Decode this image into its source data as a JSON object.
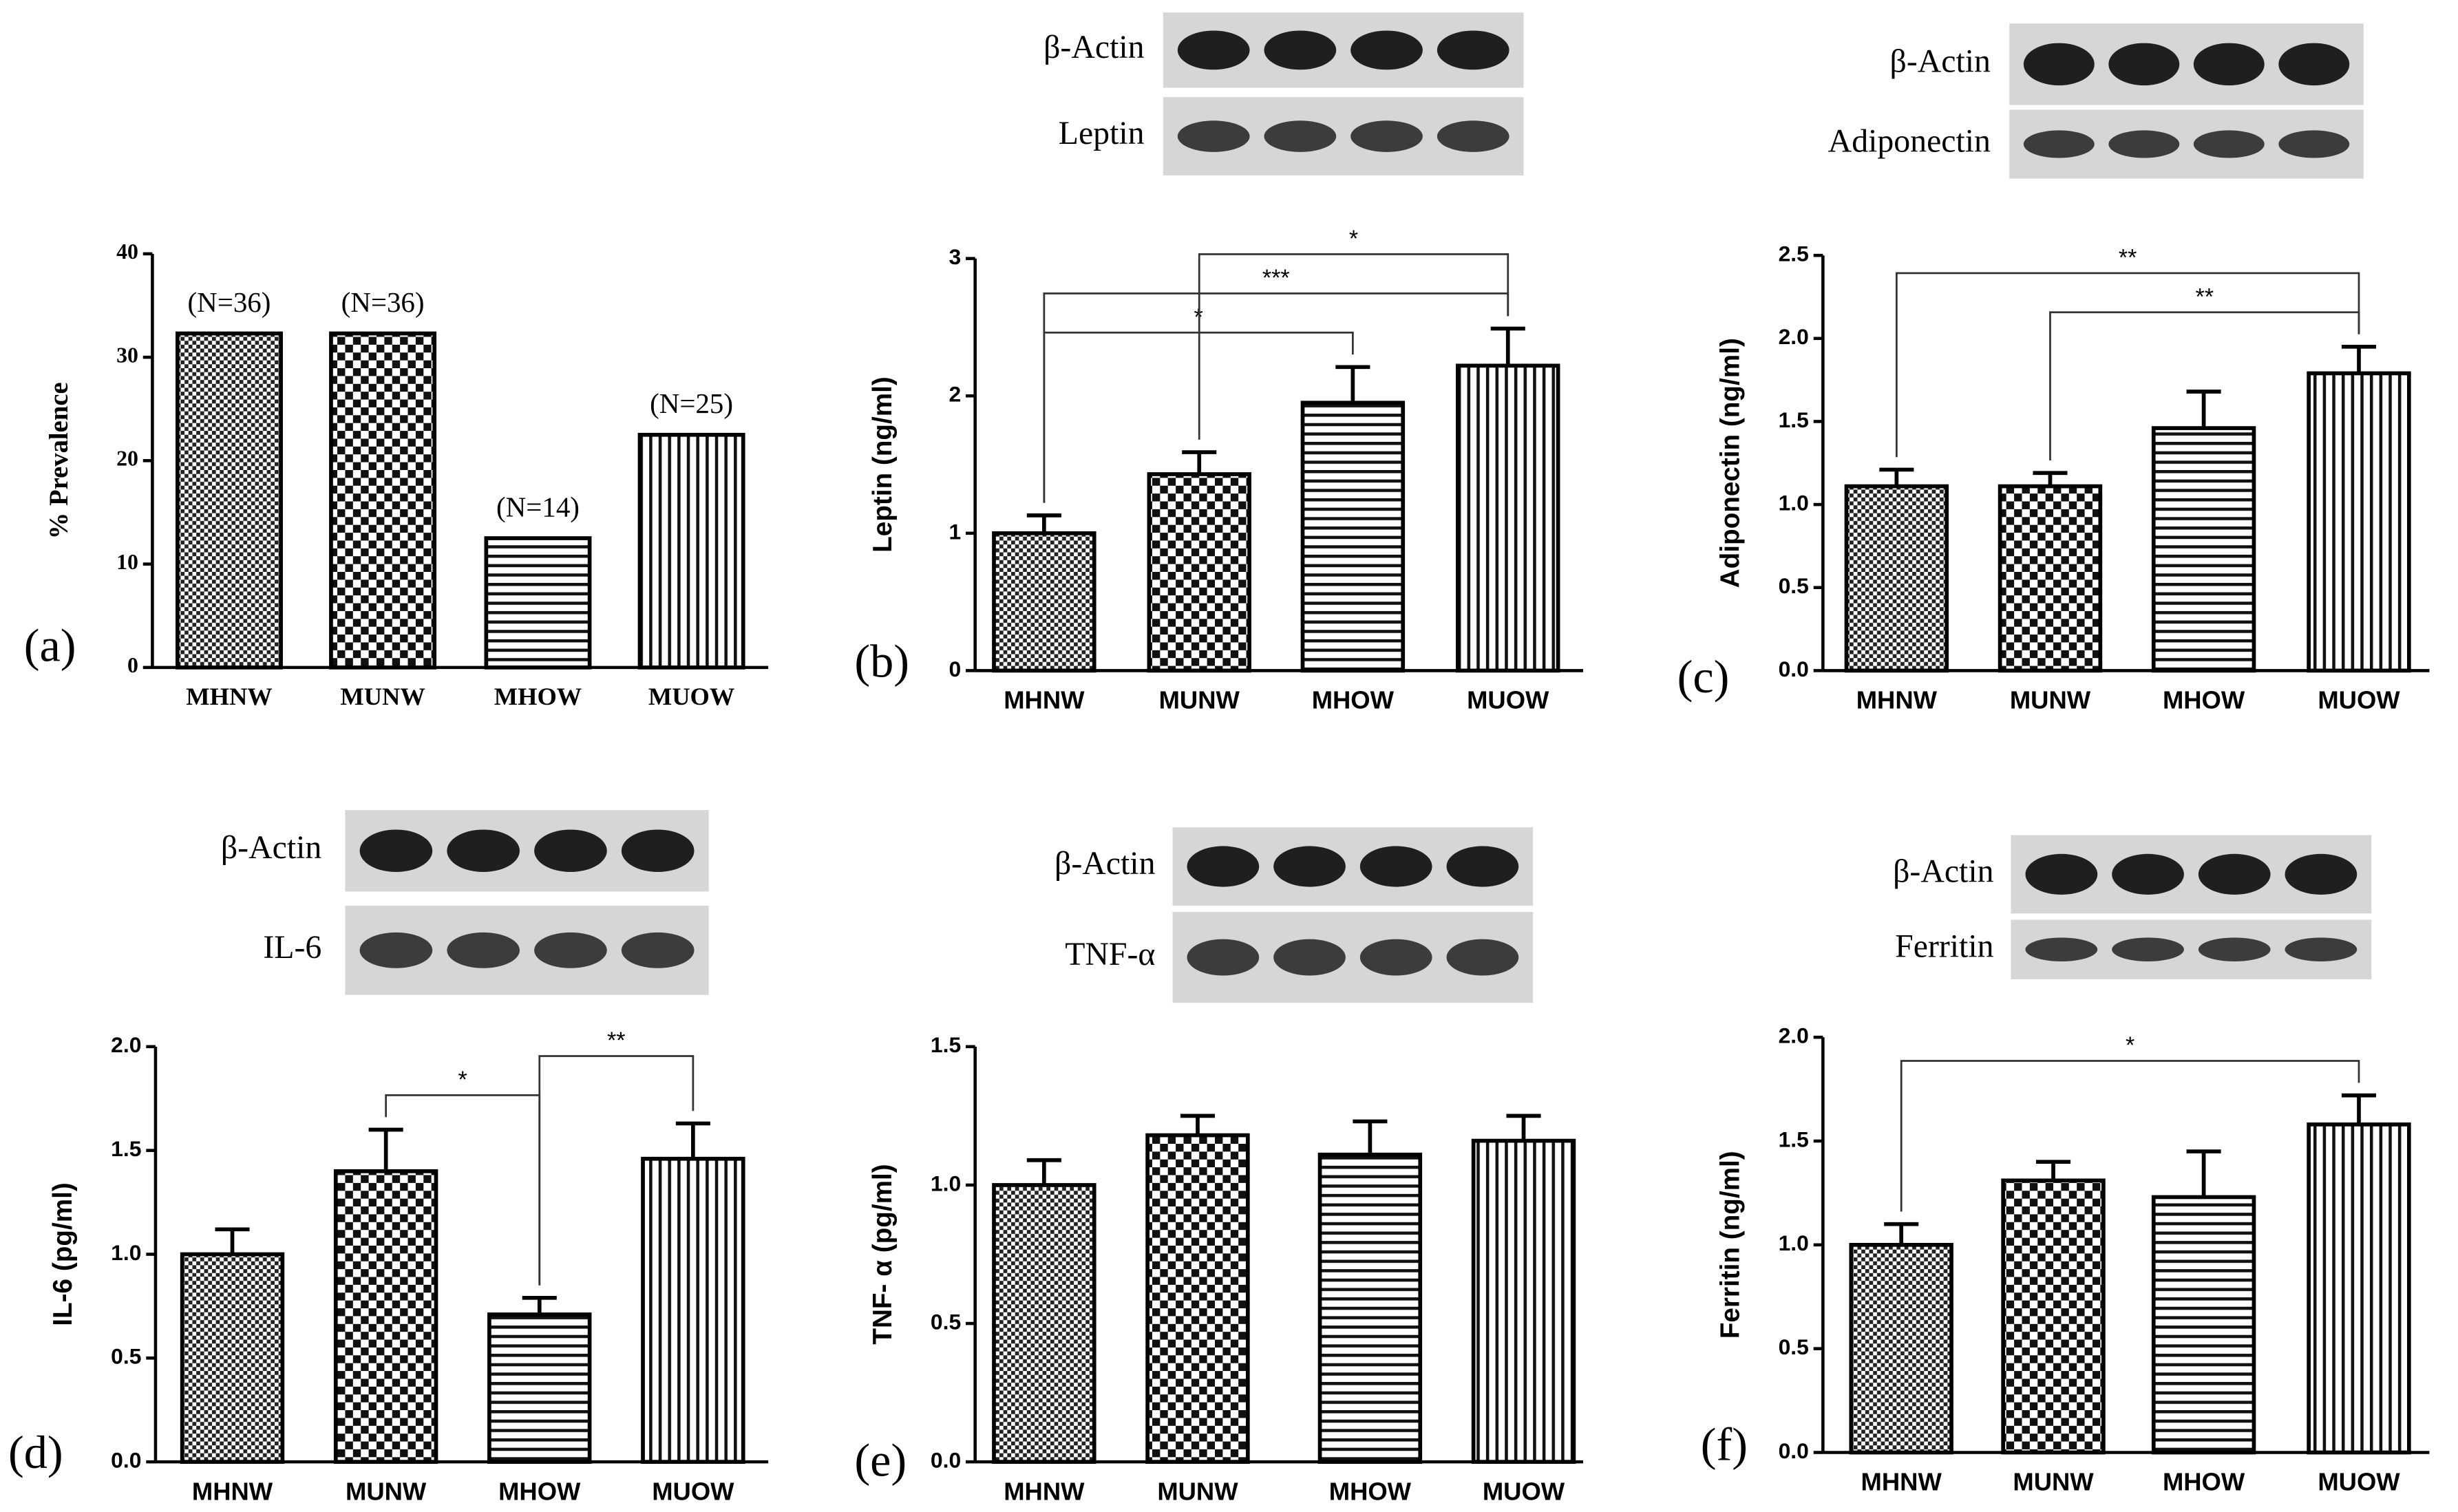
{
  "chart_data": [
    {
      "type": "bar",
      "panel": "(a)",
      "ylabel": "% Prevalence",
      "categories": [
        "MHNW",
        "MUNW",
        "MHOW",
        "MUOW"
      ],
      "values": [
        32.3,
        32.3,
        12.5,
        22.5
      ],
      "bar_annotations": [
        "(N=36)",
        "(N=36)",
        "(N=14)",
        "(N=25)"
      ],
      "patterns": [
        "crosshatch",
        "checker",
        "horizontal",
        "vertical"
      ],
      "ylim": [
        0,
        40
      ],
      "yticks": [
        0,
        10,
        20,
        30,
        40
      ]
    },
    {
      "type": "bar",
      "panel": "(b)",
      "ylabel": "Leptin (ng/ml)",
      "blots": [
        "β-Actin",
        "Leptin"
      ],
      "categories": [
        "MHNW",
        "MUNW",
        "MHOW",
        "MUOW"
      ],
      "values": [
        1.0,
        1.43,
        1.95,
        2.22
      ],
      "errors": [
        0.13,
        0.16,
        0.26,
        0.27
      ],
      "patterns": [
        "crosshatch",
        "checker",
        "horizontal",
        "vertical"
      ],
      "ylim": [
        0,
        3
      ],
      "yticks": [
        0,
        1,
        2,
        3
      ],
      "brackets": [
        {
          "from": "MHNW",
          "to": "MHOW",
          "label": "*"
        },
        {
          "from": "MHNW",
          "to": "MUOW",
          "label": "***"
        },
        {
          "from": "MUNW",
          "to": "MUOW",
          "label": "*"
        }
      ]
    },
    {
      "type": "bar",
      "panel": "(c)",
      "ylabel": "Adiponectin (ng/ml)",
      "blots": [
        "β-Actin",
        "Adiponectin"
      ],
      "categories": [
        "MHNW",
        "MUNW",
        "MHOW",
        "MUOW"
      ],
      "values": [
        1.11,
        1.11,
        1.46,
        1.79
      ],
      "errors": [
        0.1,
        0.08,
        0.22,
        0.16
      ],
      "patterns": [
        "crosshatch",
        "checker",
        "horizontal",
        "vertical"
      ],
      "ylim": [
        0,
        2.5
      ],
      "yticks": [
        {
          "value": 0,
          "label": "0.0"
        },
        0.5,
        {
          "value": 1,
          "label": "1.0"
        },
        1.5,
        {
          "value": 2,
          "label": "2.0"
        },
        2.5
      ],
      "brackets": [
        {
          "from": "MUNW",
          "to": "MUOW",
          "label": "**"
        },
        {
          "from": "MHNW",
          "to": "MUOW",
          "label": "**"
        }
      ]
    },
    {
      "type": "bar",
      "panel": "(d)",
      "ylabel": "IL-6 (pg/ml)",
      "blots": [
        "β-Actin",
        "IL-6"
      ],
      "categories": [
        "MHNW",
        "MUNW",
        "MHOW",
        "MUOW"
      ],
      "values": [
        1.0,
        1.4,
        0.71,
        1.46
      ],
      "errors": [
        0.12,
        0.2,
        0.08,
        0.17
      ],
      "patterns": [
        "crosshatch",
        "checker",
        "horizontal",
        "vertical"
      ],
      "ylim": [
        0,
        2
      ],
      "yticks": [
        {
          "value": 0,
          "label": "0.0"
        },
        0.5,
        {
          "value": 1,
          "label": "1.0"
        },
        1.5,
        {
          "value": 2,
          "label": "2.0"
        }
      ],
      "brackets": [
        {
          "from": "MUNW",
          "to": "MHOW",
          "label": "*"
        },
        {
          "from": "MHOW",
          "to": "MUOW",
          "label": "**"
        }
      ]
    },
    {
      "type": "bar",
      "panel": "(e)",
      "ylabel": "TNF- α (pg/ml)",
      "blots": [
        "β-Actin",
        "TNF-α"
      ],
      "categories": [
        "MHNW",
        "MUNW",
        "MHOW",
        "MUOW"
      ],
      "values": [
        1.0,
        1.18,
        1.11,
        1.16
      ],
      "errors": [
        0.09,
        0.07,
        0.12,
        0.09
      ],
      "patterns": [
        "crosshatch",
        "checker",
        "horizontal",
        "vertical"
      ],
      "ylim": [
        0,
        1.5
      ],
      "yticks": [
        {
          "value": 0,
          "label": "0.0"
        },
        0.5,
        {
          "value": 1,
          "label": "1.0"
        },
        1.5
      ]
    },
    {
      "type": "bar",
      "panel": "(f)",
      "ylabel": "Ferritin (ng/ml)",
      "blots": [
        "β-Actin",
        "Ferritin"
      ],
      "categories": [
        "MHNW",
        "MUNW",
        "MHOW",
        "MUOW"
      ],
      "values": [
        1.0,
        1.31,
        1.23,
        1.58
      ],
      "errors": [
        0.1,
        0.09,
        0.22,
        0.14
      ],
      "patterns": [
        "crosshatch",
        "checker",
        "horizontal",
        "vertical"
      ],
      "ylim": [
        0,
        2
      ],
      "yticks": [
        {
          "value": 0,
          "label": "0.0"
        },
        0.5,
        {
          "value": 1,
          "label": "1.0"
        },
        1.5,
        {
          "value": 2,
          "label": "2.0"
        }
      ],
      "brackets": [
        {
          "from": "MHNW",
          "to": "MUOW",
          "label": "*"
        }
      ]
    }
  ]
}
